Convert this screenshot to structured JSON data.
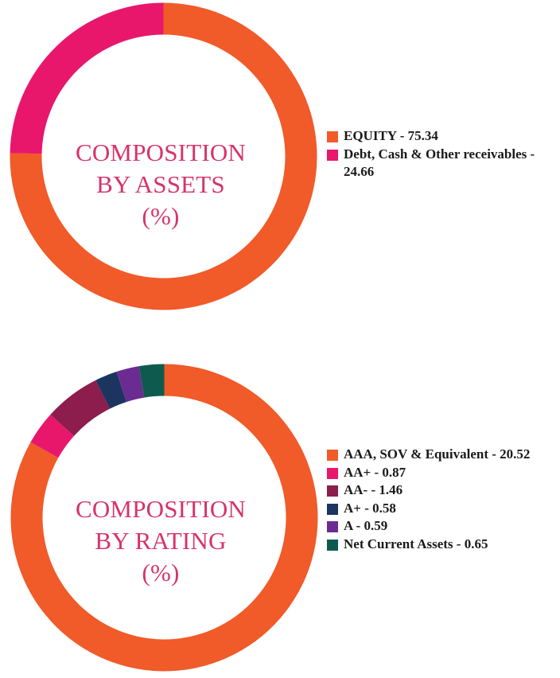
{
  "charts": [
    {
      "id": "assets",
      "title_lines": [
        "COMPOSITION",
        "BY ASSETS",
        "(%)"
      ],
      "legend_text": [
        "EQUITY - 75.34",
        "Debt, Cash & Other receivables - 24.66"
      ]
    },
    {
      "id": "rating",
      "title_lines": [
        "COMPOSITION",
        "BY RATING",
        "(%)"
      ],
      "legend_text": [
        "AAA, SOV & Equivalent - 20.52",
        "AA+ - 0.87",
        "AA- - 1.46",
        "A+ - 0.58",
        "A - 0.59",
        "Net Current Assets - 0.65"
      ]
    }
  ],
  "chart_data": [
    {
      "type": "pie",
      "variant": "donut",
      "title": "COMPOSITION BY ASSETS (%)",
      "labels": [
        "EQUITY",
        "Debt, Cash & Other receivables"
      ],
      "values": [
        75.34,
        24.66
      ],
      "colors": [
        "#f15a29",
        "#e8176c"
      ],
      "legend_position": "right"
    },
    {
      "type": "pie",
      "variant": "donut",
      "title": "COMPOSITION BY RATING (%)",
      "labels": [
        "AAA, SOV & Equivalent",
        "AA+",
        "AA-",
        "A+",
        "A",
        "Net Current Assets"
      ],
      "values": [
        20.52,
        0.87,
        1.46,
        0.58,
        0.59,
        0.65
      ],
      "colors": [
        "#f15a29",
        "#e8176c",
        "#8c1d4c",
        "#1c3560",
        "#6a2c91",
        "#0f5a4f"
      ],
      "legend_position": "right"
    }
  ]
}
